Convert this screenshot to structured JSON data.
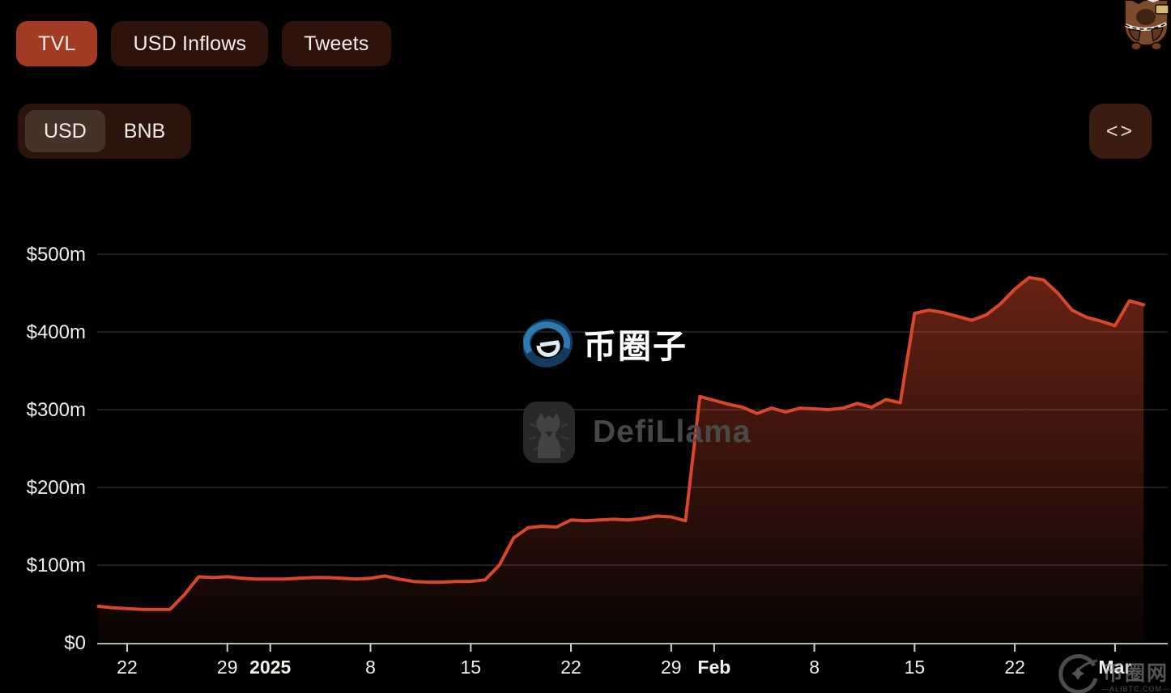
{
  "tabs": [
    {
      "label": "TVL",
      "active": true
    },
    {
      "label": "USD Inflows",
      "active": false
    },
    {
      "label": "Tweets",
      "active": false
    }
  ],
  "currency_toggle": {
    "selected": "USD",
    "options": [
      {
        "label": "USD",
        "selected": true
      },
      {
        "label": "BNB",
        "selected": false
      }
    ]
  },
  "embed_button": {
    "label": "<>",
    "icon": "code-embed-icon"
  },
  "watermarks": {
    "center_logo": {
      "text": "币圈子"
    },
    "defillama": {
      "text": "DefiLlama"
    },
    "corner": {
      "text": "币圈网",
      "subtext": "—ALIBTC.COM—"
    }
  },
  "colors": {
    "background": "#010101",
    "active_tab": "#a33a24",
    "inactive_tab": "#2e130c",
    "line": "#d9472b",
    "fill_top": "rgba(217,71,43,0.5)",
    "fill_bottom": "rgba(217,71,43,0.03)",
    "gridline": "#2a2a2a",
    "axis_line": "#b3b3b3",
    "axis_label": "#f2efec"
  },
  "chart_data": {
    "type": "area",
    "series_name": "TVL",
    "unit": "USD",
    "title": "",
    "xlabel": "",
    "ylabel": "",
    "ylim": [
      0,
      500
    ],
    "grid": "horizontal",
    "legend": "none",
    "start_date": "2024-12-20",
    "end_date": "2025-03-03",
    "dates": [
      "12-20",
      "12-21",
      "12-22",
      "12-23",
      "12-24",
      "12-25",
      "12-26",
      "12-27",
      "12-28",
      "12-29",
      "12-30",
      "12-31",
      "01-01",
      "01-02",
      "01-03",
      "01-04",
      "01-05",
      "01-06",
      "01-07",
      "01-08",
      "01-09",
      "01-10",
      "01-11",
      "01-12",
      "01-13",
      "01-14",
      "01-15",
      "01-16",
      "01-17",
      "01-18",
      "01-19",
      "01-20",
      "01-21",
      "01-22",
      "01-23",
      "01-24",
      "01-25",
      "01-26",
      "01-27",
      "01-28",
      "01-29",
      "01-30",
      "01-31",
      "02-01",
      "02-02",
      "02-03",
      "02-04",
      "02-05",
      "02-06",
      "02-07",
      "02-08",
      "02-09",
      "02-10",
      "02-11",
      "02-12",
      "02-13",
      "02-14",
      "02-15",
      "02-16",
      "02-17",
      "02-18",
      "02-19",
      "02-20",
      "02-21",
      "02-22",
      "02-23",
      "02-24",
      "02-25",
      "02-26",
      "02-27",
      "02-28",
      "03-01",
      "03-02",
      "03-03"
    ],
    "values": [
      47,
      45,
      44,
      43,
      43,
      43,
      62,
      85,
      84,
      85,
      83,
      82,
      82,
      82,
      83,
      84,
      84,
      83,
      82,
      83,
      86,
      82,
      79,
      78,
      78,
      79,
      79,
      81,
      100,
      135,
      148,
      150,
      149,
      158,
      157,
      158,
      159,
      158,
      160,
      163,
      162,
      157,
      317,
      312,
      307,
      303,
      295,
      302,
      297,
      302,
      301,
      300,
      302,
      308,
      303,
      313,
      309,
      424,
      428,
      425,
      420,
      415,
      422,
      436,
      455,
      470,
      467,
      450,
      428,
      419,
      414,
      408,
      440,
      435
    ],
    "values_unit": "millions USD",
    "y_ticks": [
      {
        "value": 0,
        "label": "$0"
      },
      {
        "value": 100,
        "label": "$100m"
      },
      {
        "value": 200,
        "label": "$200m"
      },
      {
        "value": 300,
        "label": "$300m"
      },
      {
        "value": 400,
        "label": "$400m"
      },
      {
        "value": 500,
        "label": "$500m"
      }
    ],
    "x_ticks": [
      {
        "day": 2,
        "label": "22",
        "bold": false
      },
      {
        "day": 9,
        "label": "29",
        "bold": false
      },
      {
        "day": 12,
        "label": "2025",
        "bold": true
      },
      {
        "day": 19,
        "label": "8",
        "bold": false
      },
      {
        "day": 26,
        "label": "15",
        "bold": false
      },
      {
        "day": 33,
        "label": "22",
        "bold": false
      },
      {
        "day": 40,
        "label": "29",
        "bold": false
      },
      {
        "day": 43,
        "label": "Feb",
        "bold": true
      },
      {
        "day": 50,
        "label": "8",
        "bold": false
      },
      {
        "day": 57,
        "label": "15",
        "bold": false
      },
      {
        "day": 64,
        "label": "22",
        "bold": false
      },
      {
        "day": 71,
        "label": "Mar",
        "bold": true
      }
    ]
  }
}
